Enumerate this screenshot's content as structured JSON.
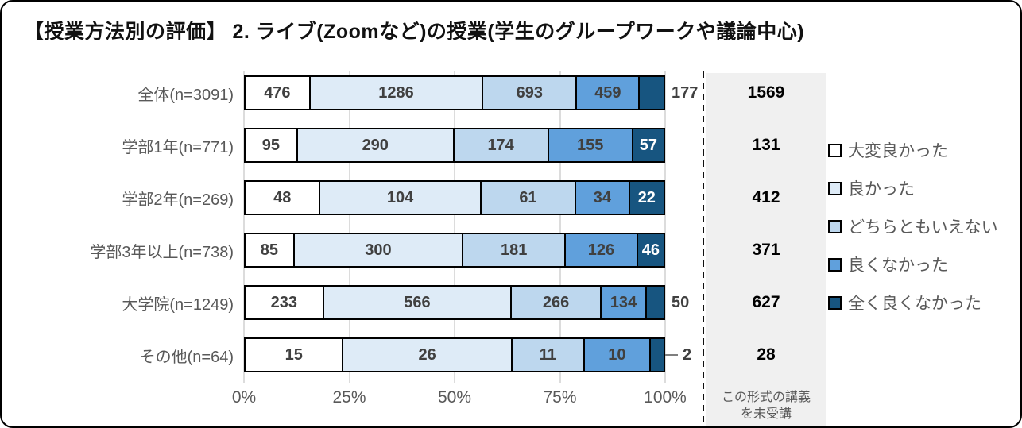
{
  "title": "【授業方法別の評価】 2. ライブ(Zoomなど)の授業(学生のグループワークや議論中心)",
  "chart_data": {
    "type": "bar",
    "orientation": "horizontal",
    "stacked": true,
    "normalized": "each bar sums to 100%",
    "grid": true,
    "legend_position": "right",
    "xlim": [
      0,
      100
    ],
    "x_ticks": [
      "0%",
      "25%",
      "50%",
      "75%",
      "100%"
    ],
    "categories": [
      "全体(n=3091)",
      "学部1年(n=771)",
      "学部2年(n=269)",
      "学部3年以上(n=738)",
      "大学院(n=1249)",
      "その他(n=64)"
    ],
    "series": [
      {
        "name": "大変良かった",
        "color": "#FFFFFF",
        "values": [
          476,
          95,
          48,
          85,
          233,
          15
        ]
      },
      {
        "name": "良かった",
        "color": "#DEEBF7",
        "values": [
          1286,
          290,
          104,
          300,
          566,
          26
        ]
      },
      {
        "name": "どちらともいえない",
        "color": "#BDD7EE",
        "values": [
          693,
          174,
          61,
          181,
          266,
          11
        ]
      },
      {
        "name": "良くなかった",
        "color": "#60A0DC",
        "values": [
          459,
          155,
          34,
          126,
          134,
          10
        ]
      },
      {
        "name": "全く良くなかった",
        "color": "#175580",
        "values": [
          177,
          57,
          22,
          46,
          50,
          2
        ]
      }
    ],
    "not_attended": {
      "label": "この形式の講義を未受講",
      "label_lines": [
        "この形式の講義",
        "を未受講"
      ],
      "values": [
        1569,
        131,
        412,
        371,
        627,
        28
      ]
    }
  },
  "colors": {
    "grid": "#DCDCDC",
    "panel_bg": "#F0F0F0",
    "value_text": "#404040",
    "muted_text": "#595959",
    "border": "#000000"
  }
}
